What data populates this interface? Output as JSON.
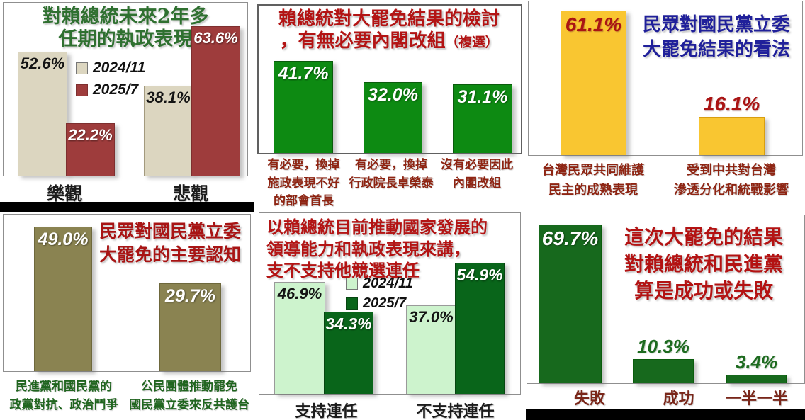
{
  "chart_data": [
    {
      "id": "president-two-year-outlook",
      "type": "bar",
      "title": "對賴總統未來2年多\n任期的執政表現",
      "title_color": "#2f7030",
      "category_color": "#1c1c1c",
      "categories": [
        "樂觀",
        "悲觀"
      ],
      "series": [
        {
          "name": "2024/11",
          "color": "#dcd6c0",
          "values": [
            52.6,
            38.1
          ]
        },
        {
          "name": "2025/7",
          "color": "#9e3c3c",
          "values": [
            22.2,
            63.6
          ]
        }
      ],
      "bar_labels": [
        "52.6%",
        "22.2%",
        "38.1%",
        "63.6%"
      ],
      "legend_position": "top-center",
      "ylim": [
        0,
        70
      ],
      "grid": false
    },
    {
      "id": "cabinet-reshuffle-necessity",
      "type": "bar",
      "title": "賴總統對大罷免結果的檢討\n，有無必要內閣改組",
      "title_suffix": "（複選）",
      "title_color": "#b31414",
      "category_color": "#8e2412",
      "categories": [
        "有必要，換掉\n施政表現不好\n的部會首長",
        "有必要，換掉\n行政院長卓榮泰",
        "沒有必要因此\n內閣改組"
      ],
      "values": [
        41.7,
        32.0,
        31.1
      ],
      "bar_labels": [
        "41.7%",
        "32.0%",
        "31.1%"
      ],
      "bar_color": "#0d8a12",
      "ylim": [
        0,
        55
      ],
      "grid": false
    },
    {
      "id": "kmt-recall-result-view",
      "type": "bar",
      "title": "民眾對國民黨立委\n大罷免結果的看法",
      "title_color": "#20209a",
      "category_color": "#8e2412",
      "categories": [
        "台灣民眾共同維護\n民主的成熟表現",
        "受到中共對台灣\n滲透分化和統戰影響"
      ],
      "values": [
        61.1,
        16.1
      ],
      "bar_labels": [
        "61.1%",
        "16.1%"
      ],
      "bar_color": "#f9c631",
      "ylim": [
        0,
        65
      ],
      "grid": false
    },
    {
      "id": "kmt-recall-main-perception",
      "type": "bar",
      "title": "民眾對國民黨立委\n大罷免的主要認知",
      "title_color": "#a81414",
      "category_color": "#20651f",
      "categories": [
        "民進黨和國民黨的\n政黨對抗、政治鬥爭",
        "公民團體推動罷免\n國民黨立委來反共護台"
      ],
      "values": [
        49.0,
        29.7
      ],
      "bar_labels": [
        "49.0%",
        "29.7%"
      ],
      "bar_color": "#8a8351",
      "ylim": [
        0,
        55
      ],
      "grid": false
    },
    {
      "id": "lai-reelection-support",
      "type": "bar",
      "title": "以賴總統目前推動國家發展的\n領導能力和執政表現來講，\n支不支持他競選連任",
      "title_color": "#b31414",
      "category_color": "#1c1c1c",
      "categories": [
        "支持連任",
        "不支持連任"
      ],
      "series": [
        {
          "name": "2024/11",
          "color": "#cdf3cd",
          "values": [
            46.9,
            37.0
          ]
        },
        {
          "name": "2025/7",
          "color": "#09651a",
          "values": [
            34.3,
            54.9
          ]
        }
      ],
      "bar_labels": [
        "46.9%",
        "34.3%",
        "37.0%",
        "54.9%"
      ],
      "legend_position": "top-center",
      "ylim": [
        0,
        60
      ],
      "grid": false
    },
    {
      "id": "recall-success-or-failure",
      "type": "bar",
      "title": "這次大罷免的結果\n對賴總統和民進黨\n算是成功或失敗",
      "title_color": "#b31212",
      "category_color": "#7a2619",
      "categories": [
        "失敗",
        "成功",
        "一半一半"
      ],
      "values": [
        69.7,
        10.3,
        3.4
      ],
      "bar_labels": [
        "69.7%",
        "10.3%",
        "3.4%"
      ],
      "bar_color": "#17691d",
      "ylim": [
        0,
        75
      ],
      "grid": false
    }
  ]
}
